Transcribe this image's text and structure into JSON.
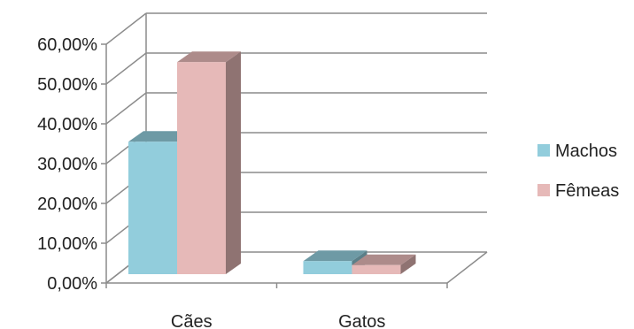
{
  "chart_data": {
    "type": "bar",
    "style": "3d-clustered-column",
    "categories": [
      "Cães",
      "Gatos"
    ],
    "series": [
      {
        "name": "Machos",
        "values": [
          35.5,
          5.5
        ],
        "color": "#92CDDC"
      },
      {
        "name": "Fêmeas",
        "values": [
          55.5,
          4.5
        ],
        "color": "#E6B9B8"
      }
    ],
    "y_tick_labels": [
      "0,00%",
      "10,00%",
      "20,00%",
      "30,00%",
      "40,00%",
      "50,00%",
      "60,00%"
    ],
    "ylim": [
      0,
      60
    ],
    "grid": true,
    "legend_position": "right",
    "title": "",
    "xlabel": "",
    "ylabel": ""
  }
}
